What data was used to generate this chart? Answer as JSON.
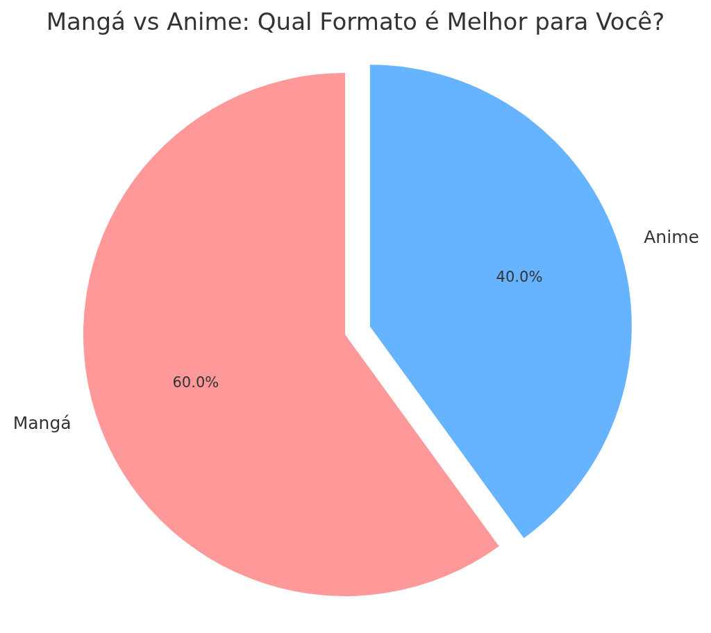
{
  "chart_data": {
    "type": "pie",
    "title": "Mangá vs Anime: Qual Formato é Melhor para Você?",
    "categories": [
      "Mangá",
      "Anime"
    ],
    "values": [
      60,
      40
    ],
    "colors": [
      "#ff9999",
      "#66b3ff"
    ],
    "value_labels": [
      "60.0%",
      "40.0%"
    ]
  }
}
